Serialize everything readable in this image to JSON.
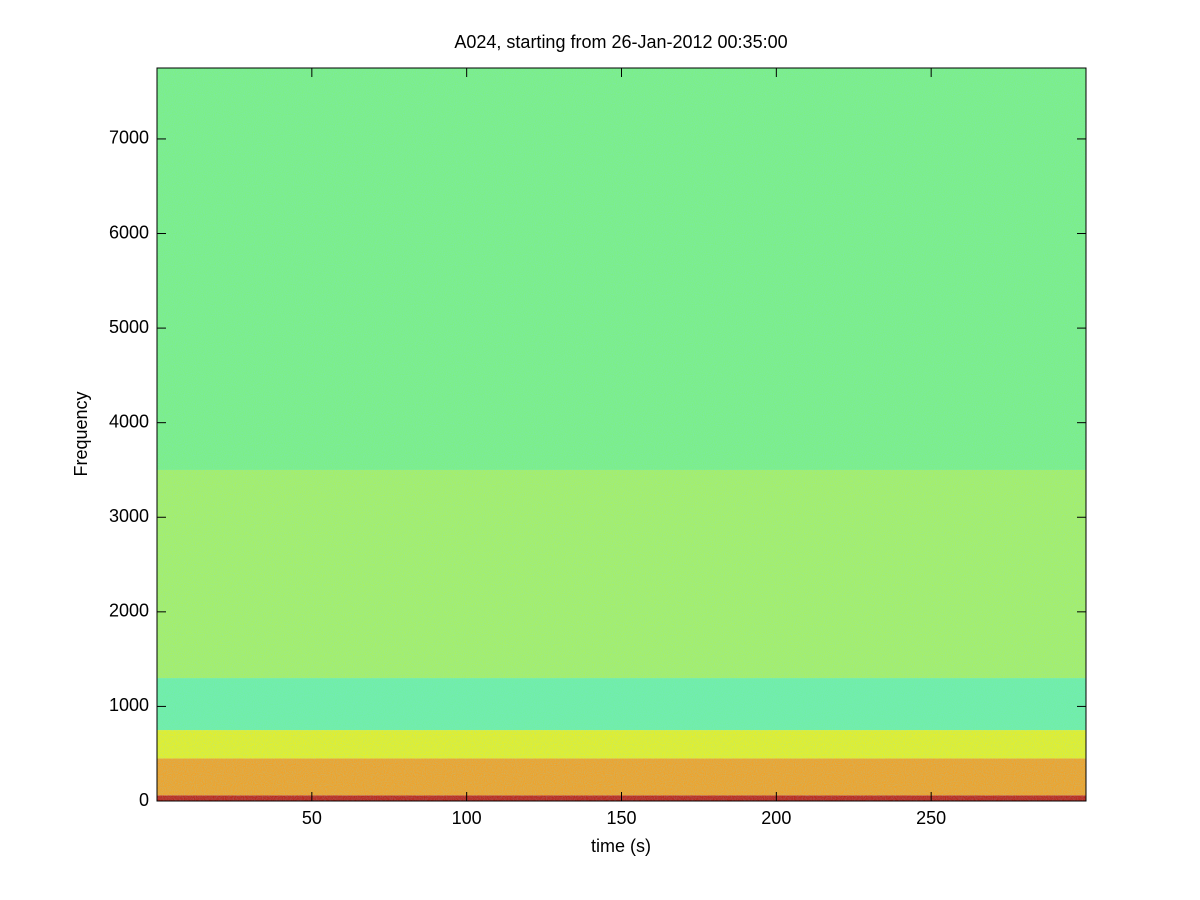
{
  "chart_data": {
    "type": "spectrogram",
    "title": "A024, starting from 26-Jan-2012 00:35:00",
    "xlabel": "time (s)",
    "ylabel": "Frequency",
    "xlim": [
      0,
      300
    ],
    "ylim": [
      0,
      7750
    ],
    "xticks": [
      50,
      100,
      150,
      200,
      250
    ],
    "yticks": [
      0,
      1000,
      2000,
      3000,
      4000,
      5000,
      6000,
      7000
    ],
    "bands": [
      {
        "from": 0,
        "to": 60,
        "color": "#c02010"
      },
      {
        "from": 60,
        "to": 450,
        "color": "#f5a020"
      },
      {
        "from": 450,
        "to": 750,
        "color": "#e8f020"
      },
      {
        "from": 750,
        "to": 1300,
        "color": "#70f0a0"
      },
      {
        "from": 1300,
        "to": 3500,
        "color": "#a8f060"
      },
      {
        "from": 3500,
        "to": 7750,
        "color": "#7cf080"
      }
    ]
  }
}
